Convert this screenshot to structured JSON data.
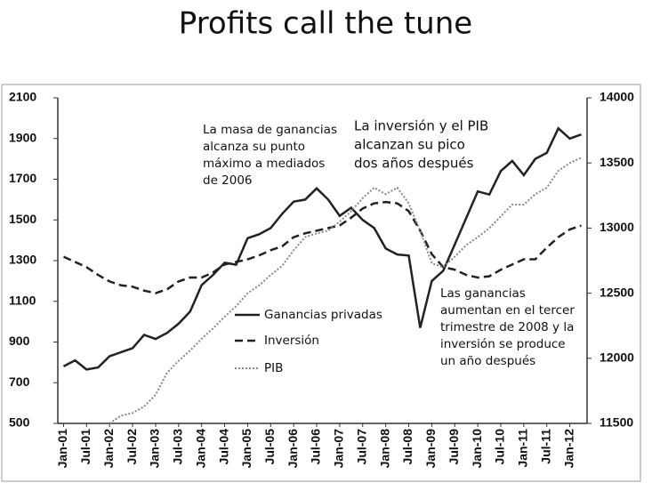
{
  "chart_data": {
    "type": "line",
    "title": "Profits call the tune",
    "categories": [
      "Jan-01",
      null,
      "Jul-01",
      null,
      "Jan-02",
      null,
      "Jul-02",
      null,
      "Jan-03",
      null,
      "Jul-03",
      null,
      "Jan-04",
      null,
      "Jul-04",
      null,
      "Jan-05",
      null,
      "Jul-05",
      null,
      "Jan-06",
      null,
      "Jul-06",
      null,
      "Jan-07",
      null,
      "Jul-07",
      null,
      "Jan-08",
      null,
      "Jul-08",
      null,
      "Jan-09",
      null,
      "Jul-09",
      null,
      "Jan-10",
      null,
      "Jul-10",
      null,
      "Jan-11",
      null,
      "Jul-11",
      null,
      "Jan-12",
      null
    ],
    "series": [
      {
        "name": "Ganancias privadas",
        "color": "#222222",
        "line_style": "solid",
        "axis": "y",
        "values": [
          780,
          810,
          765,
          775,
          830,
          850,
          870,
          935,
          915,
          945,
          990,
          1050,
          1180,
          1230,
          1290,
          1280,
          1410,
          1430,
          1460,
          1530,
          1590,
          1600,
          1655,
          1600,
          1520,
          1560,
          1500,
          1460,
          1360,
          1330,
          1325,
          970,
          1200,
          1250,
          1380,
          1510,
          1640,
          1625,
          1740,
          1790,
          1720,
          1800,
          1830,
          1950,
          1900,
          1920
        ]
      },
      {
        "name": "Inversión",
        "color": "#222222",
        "line_style": "dashed",
        "axis": "y2",
        "values": [
          12780,
          12740,
          12700,
          12640,
          12590,
          12560,
          12550,
          12520,
          12500,
          12530,
          12590,
          12620,
          12620,
          12660,
          12720,
          12740,
          12760,
          12790,
          12830,
          12860,
          12930,
          12960,
          12980,
          13000,
          13020,
          13080,
          13150,
          13190,
          13200,
          13190,
          13130,
          12980,
          12800,
          12700,
          12680,
          12640,
          12620,
          12630,
          12680,
          12720,
          12760,
          12760,
          12850,
          12930,
          12990,
          13020
        ]
      },
      {
        "name": "PIB",
        "color": "#888888",
        "line_style": "dotted",
        "axis": "y2",
        "values": [
          null,
          null,
          null,
          null,
          11500,
          11560,
          11580,
          11630,
          11720,
          11890,
          11980,
          12060,
          12150,
          12230,
          12320,
          12400,
          12500,
          12560,
          12640,
          12710,
          12830,
          12930,
          12960,
          12980,
          13050,
          13130,
          13230,
          13310,
          13260,
          13310,
          13190,
          12980,
          12730,
          12700,
          12780,
          12870,
          12930,
          13000,
          13090,
          13180,
          13180,
          13260,
          13310,
          13440,
          13500,
          13540
        ]
      }
    ],
    "ylim": [
      500,
      2100
    ],
    "yticks": [
      500,
      700,
      900,
      1100,
      1300,
      1500,
      1700,
      1900,
      2100
    ],
    "y2lim": [
      11500,
      14000
    ],
    "y2ticks": [
      11500,
      12000,
      12500,
      13000,
      13500,
      14000
    ],
    "annotations": [
      [
        "La masa de ganancias",
        "alcanza su punto",
        "máximo a mediados",
        "de 2006"
      ],
      [
        "La inversión y el PIB",
        "alcanzan su pico",
        "dos años después"
      ],
      [
        "Las ganancias",
        "aumentan en el tercer",
        "trimestre de 2008 y la",
        "inversión se produce",
        "un año después"
      ]
    ]
  }
}
